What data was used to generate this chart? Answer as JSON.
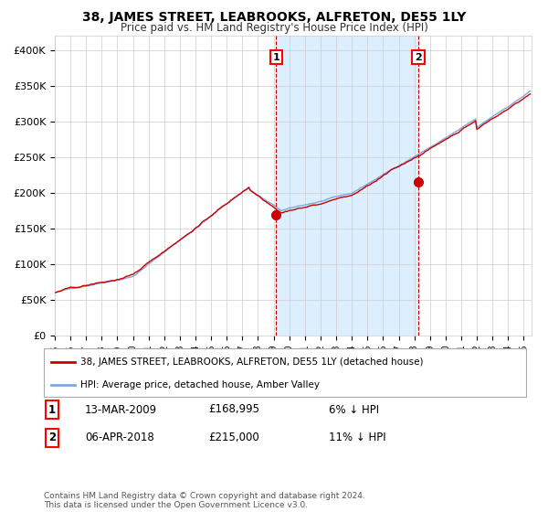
{
  "title": "38, JAMES STREET, LEABROOKS, ALFRETON, DE55 1LY",
  "subtitle": "Price paid vs. HM Land Registry's House Price Index (HPI)",
  "legend_line1": "38, JAMES STREET, LEABROOKS, ALFRETON, DE55 1LY (detached house)",
  "legend_line2": "HPI: Average price, detached house, Amber Valley",
  "transaction1_date": "13-MAR-2009",
  "transaction1_price": 168995,
  "transaction1_note": "6% ↓ HPI",
  "transaction2_date": "06-APR-2018",
  "transaction2_price": 215000,
  "transaction2_note": "11% ↓ HPI",
  "ylim": [
    0,
    420000
  ],
  "xstart_year": 1995,
  "xend_year": 2025,
  "red_color": "#cc0000",
  "blue_color": "#7aaadd",
  "shade_color": "#ddeeff",
  "grid_color": "#cccccc",
  "footnote": "Contains HM Land Registry data © Crown copyright and database right 2024.\nThis data is licensed under the Open Government Licence v3.0.",
  "background_color": "#ffffff"
}
